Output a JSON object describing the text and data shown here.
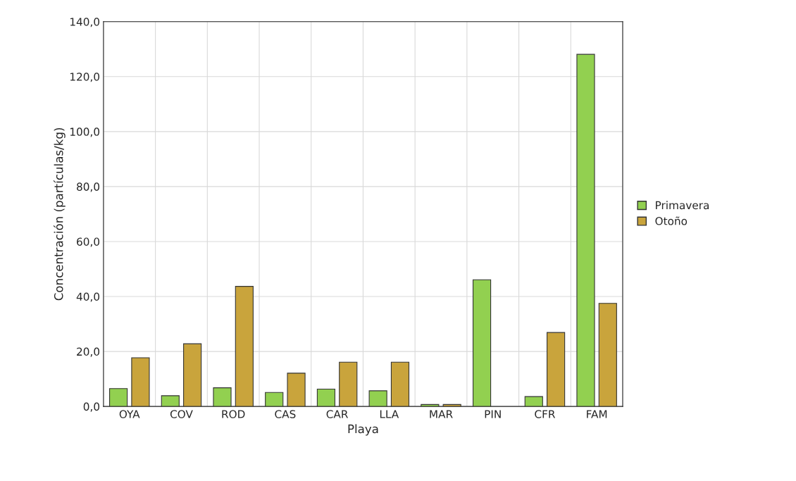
{
  "chart_data": {
    "type": "bar",
    "xlabel": "Playa",
    "ylabel": "Concentración (partículas/kg)",
    "categories": [
      "OYA",
      "COV",
      "ROD",
      "CAS",
      "CAR",
      "LLA",
      "MAR",
      "PIN",
      "CFR",
      "FAM"
    ],
    "series": [
      {
        "name": "Primavera",
        "color": "#92d050",
        "values": [
          6.5,
          3.9,
          6.8,
          5.1,
          6.3,
          5.7,
          0.7,
          46.1,
          3.6,
          128.1
        ]
      },
      {
        "name": "Otoño",
        "color": "#c9a43c",
        "values": [
          17.7,
          22.8,
          43.7,
          12.1,
          16.1,
          16.1,
          0.7,
          null,
          26.9,
          37.5
        ]
      }
    ],
    "ylim": [
      0,
      140
    ],
    "yticks": [
      {
        "value": 0,
        "label": "0,0"
      },
      {
        "value": 20,
        "label": "20,0"
      },
      {
        "value": 40,
        "label": "40,0"
      },
      {
        "value": 60,
        "label": "60,0"
      },
      {
        "value": 80,
        "label": "80,0"
      },
      {
        "value": 100,
        "label": "100,0"
      },
      {
        "value": 120,
        "label": "120,0"
      },
      {
        "value": 140,
        "label": "140,0"
      }
    ],
    "grid": true,
    "legend": "right"
  }
}
